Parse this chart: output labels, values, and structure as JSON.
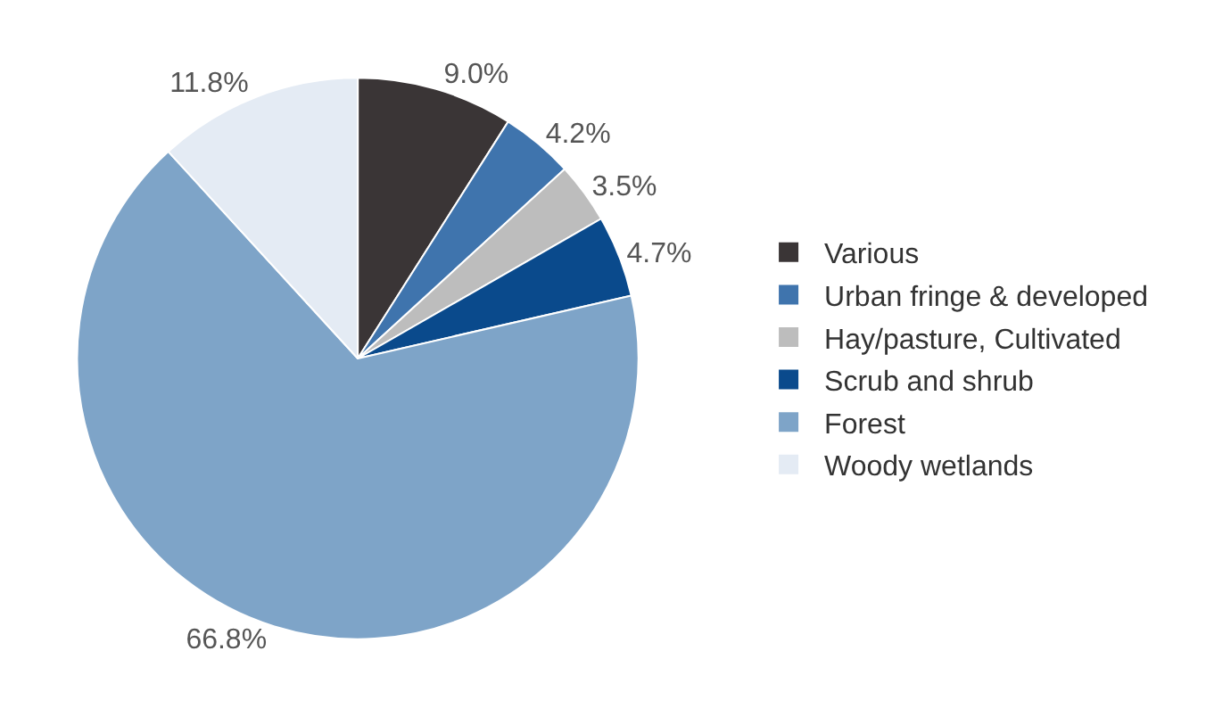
{
  "chart_data": {
    "type": "pie",
    "categories": [
      "Various",
      "Urban fringe & developed",
      "Hay/pasture, Cultivated",
      "Scrub and shrub",
      "Forest",
      "Woody wetlands"
    ],
    "values": [
      9.0,
      4.2,
      3.5,
      4.7,
      66.8,
      11.8
    ],
    "value_labels": [
      "9.0%",
      "4.2%",
      "3.5%",
      "4.7%",
      "66.8%",
      "11.8%"
    ],
    "colors": [
      "#3a3536",
      "#3f74ad",
      "#bdbdbd",
      "#0a4a8c",
      "#7ea4c8",
      "#e4ebf4"
    ],
    "legend": "right"
  }
}
